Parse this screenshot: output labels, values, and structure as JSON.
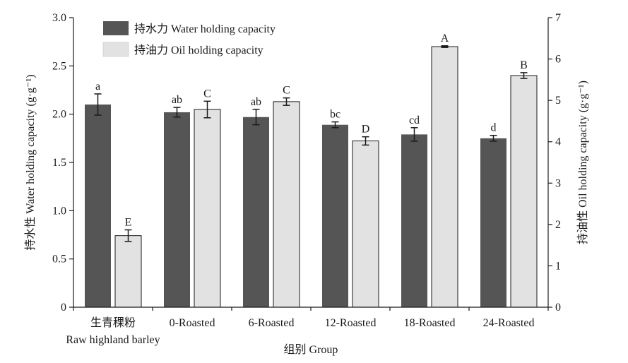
{
  "chart_data": {
    "type": "bar",
    "xlabel": "组别 Group",
    "ylabel_left": "持水性 Water holding capacity (g·g⁻¹)",
    "ylabel_right": "持油性 Oil holding capacity (g·g⁻¹)",
    "ylim_left": [
      0,
      3.0
    ],
    "yticks_left": [
      "0",
      "0.5",
      "1.0",
      "1.5",
      "2.0",
      "2.5",
      "3.0"
    ],
    "ylim_right": [
      0,
      7
    ],
    "yticks_right": [
      "0",
      "1",
      "2",
      "3",
      "4",
      "5",
      "6",
      "7"
    ],
    "legend_position": "top-left",
    "categories": [
      [
        "生青稞粉",
        "Raw highland barley"
      ],
      [
        "0-Roasted"
      ],
      [
        "6-Roasted"
      ],
      [
        "12-Roasted"
      ],
      [
        "18-Roasted"
      ],
      [
        "24-Roasted"
      ]
    ],
    "series": [
      {
        "name": "持水力 Water holding capacity",
        "axis": "left",
        "color": "#555555",
        "values": [
          2.1,
          2.02,
          1.97,
          1.89,
          1.79,
          1.75
        ],
        "errors": [
          0.11,
          0.05,
          0.08,
          0.03,
          0.07,
          0.03
        ],
        "letters": [
          "a",
          "ab",
          "ab",
          "bc",
          "cd",
          "d"
        ]
      },
      {
        "name": "持油力 Oil holding capacity",
        "axis": "right",
        "color": "#e2e2e2",
        "values": [
          1.73,
          4.78,
          4.97,
          4.02,
          6.3,
          5.6
        ],
        "errors": [
          0.14,
          0.2,
          0.09,
          0.1,
          0.02,
          0.07
        ],
        "letters": [
          "E",
          "C",
          "C",
          "D",
          "A",
          "B"
        ]
      }
    ]
  }
}
